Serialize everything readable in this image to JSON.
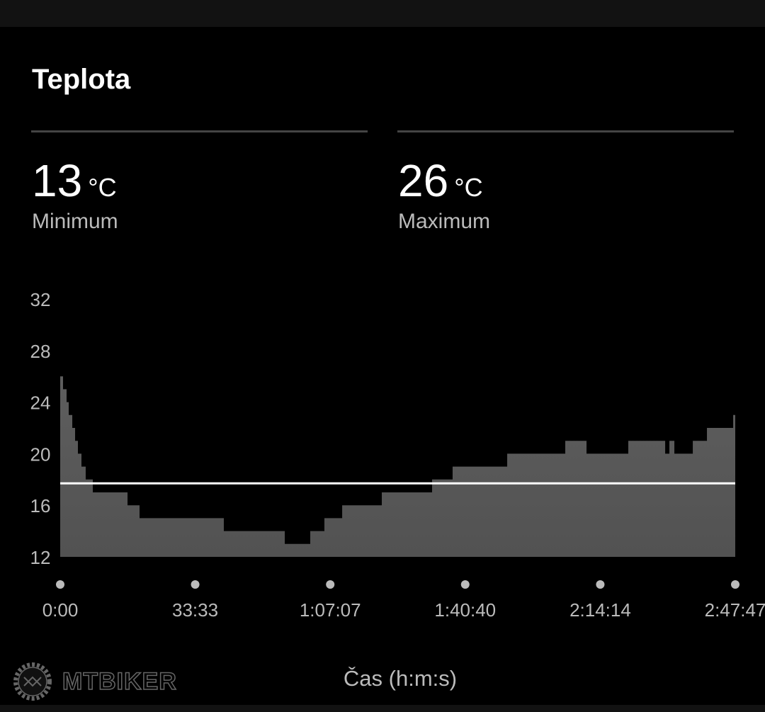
{
  "card": {
    "title": "Teplota"
  },
  "stats": [
    {
      "value": "13",
      "unit": "°C",
      "label": "Minimum"
    },
    {
      "value": "26",
      "unit": "°C",
      "label": "Maximum"
    }
  ],
  "watermark": "MTBIKER",
  "chart_data": {
    "type": "area",
    "title": "Teplota",
    "xlabel": "Čas (h:m:s)",
    "ylabel": "°C",
    "ylim": [
      12,
      32
    ],
    "xlim": [
      0,
      10067
    ],
    "yticks": [
      12,
      16,
      20,
      24,
      28,
      32
    ],
    "xticks": [
      0,
      2013,
      4027,
      6040,
      8054,
      10067
    ],
    "xtick_labels": [
      "0:00",
      "33:33",
      "1:07:07",
      "1:40:40",
      "2:14:14",
      "2:47:47"
    ],
    "average": 17.7,
    "colors": {
      "fill": "#585858",
      "average": "#ffffff"
    },
    "steps": [
      [
        0,
        26
      ],
      [
        42,
        25
      ],
      [
        95,
        24
      ],
      [
        127,
        23
      ],
      [
        180,
        22
      ],
      [
        222,
        21
      ],
      [
        264,
        20
      ],
      [
        317,
        19
      ],
      [
        380,
        18
      ],
      [
        486,
        17
      ],
      [
        1004,
        16
      ],
      [
        1183,
        15
      ],
      [
        2440,
        14
      ],
      [
        3349,
        13
      ],
      [
        3729,
        14
      ],
      [
        3940,
        15
      ],
      [
        4205,
        16
      ],
      [
        4796,
        17
      ],
      [
        5546,
        18
      ],
      [
        5852,
        19
      ],
      [
        6666,
        20
      ],
      [
        7532,
        21
      ],
      [
        7849,
        20
      ],
      [
        8472,
        21
      ],
      [
        9022,
        20
      ],
      [
        9085,
        21
      ],
      [
        9159,
        20
      ],
      [
        9434,
        21
      ],
      [
        9645,
        22
      ],
      [
        10036,
        23
      ],
      [
        10067,
        23
      ]
    ]
  }
}
